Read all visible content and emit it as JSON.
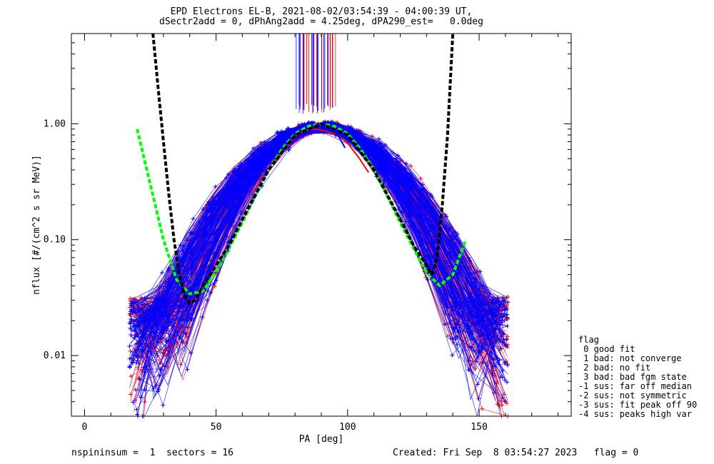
{
  "title_line1": "EPD Electrons EL-B, 2021-08-02/03:54:39 - 04:00:39 UT,",
  "title_line2": "dSectr2add = 0, dPhAng2add = 4.25deg, dPA290_est=   0.0deg",
  "footer_left": "nspininsum =  1  sectors = 16",
  "footer_right": "Created: Fri Sep  8 03:54:27 2023   flag = 0",
  "legend": {
    "title": "flag",
    "items": [
      " 0 good fit",
      " 1 bad: not converge",
      " 2 bad: no fit",
      " 3 bad: bad fgm state",
      "-1 sus: far off median",
      "-2 sus: not symmetric",
      "-3 sus: fit peak off 90",
      "-4 sus: peaks high var"
    ]
  },
  "chart_data": {
    "type": "line",
    "title": "EPD Electrons EL-B, 2021-08-02/03:54:39 - 04:00:39 UT,",
    "subtitle": "dSectr2add = 0, dPhAng2add = 4.25deg, dPA290_est=   0.0deg",
    "xlabel": "PA [deg]",
    "ylabel": "nflux [#/(cm^2 s sr MeV)]",
    "xlim": [
      -5,
      185
    ],
    "ylim": [
      0.003,
      6
    ],
    "yscale": "log",
    "x_ticks": [
      "0",
      "50",
      "100",
      "150"
    ],
    "y_ticks": [
      "0.01",
      "0.10",
      "1.00"
    ],
    "grid": false,
    "colors": {
      "series_a": "#0000ff",
      "series_b": "#ff0000",
      "fit_green": "#00ff00",
      "fit_black": "#000000"
    },
    "series": [
      {
        "x": [
          20,
          25,
          30,
          35,
          40,
          45,
          50,
          55,
          60,
          65,
          70,
          75,
          80,
          85,
          90,
          95,
          100,
          105,
          110,
          115,
          120,
          125,
          130,
          135,
          140,
          145
        ],
        "values": [
          0.9,
          0.3,
          0.1,
          0.045,
          0.034,
          0.036,
          0.052,
          0.085,
          0.14,
          0.24,
          0.4,
          0.6,
          0.82,
          0.95,
          1.0,
          0.95,
          0.82,
          0.6,
          0.4,
          0.24,
          0.14,
          0.085,
          0.052,
          0.04,
          0.05,
          0.1
        ]
      },
      {
        "x": [
          26,
          28,
          30,
          32,
          34,
          36,
          38,
          40,
          42,
          45,
          50,
          55,
          60,
          70,
          80,
          90,
          100,
          110,
          120,
          125,
          130,
          132,
          134,
          136,
          138,
          140
        ],
        "values": [
          6.0,
          2.0,
          0.7,
          0.25,
          0.1,
          0.05,
          0.033,
          0.028,
          0.03,
          0.04,
          0.06,
          0.09,
          0.15,
          0.4,
          0.8,
          1.0,
          0.8,
          0.4,
          0.15,
          0.09,
          0.06,
          0.05,
          0.07,
          0.2,
          0.8,
          6.0
        ]
      }
    ],
    "data_traces": {
      "blue_peak_x": [
        75,
        77,
        79,
        81,
        83,
        85,
        87,
        89,
        91,
        93,
        95,
        97,
        99
      ],
      "blue_peak_y": [
        0.55,
        0.7,
        0.8,
        0.88,
        0.92,
        0.95,
        0.95,
        0.95,
        0.93,
        0.9,
        0.85,
        0.75,
        0.62
      ],
      "red_peak_x": [
        72,
        76,
        80,
        84,
        88,
        92,
        96,
        100,
        104,
        108
      ],
      "red_peak_y": [
        0.45,
        0.6,
        0.78,
        0.88,
        0.9,
        0.86,
        0.8,
        0.68,
        0.52,
        0.38
      ]
    }
  }
}
